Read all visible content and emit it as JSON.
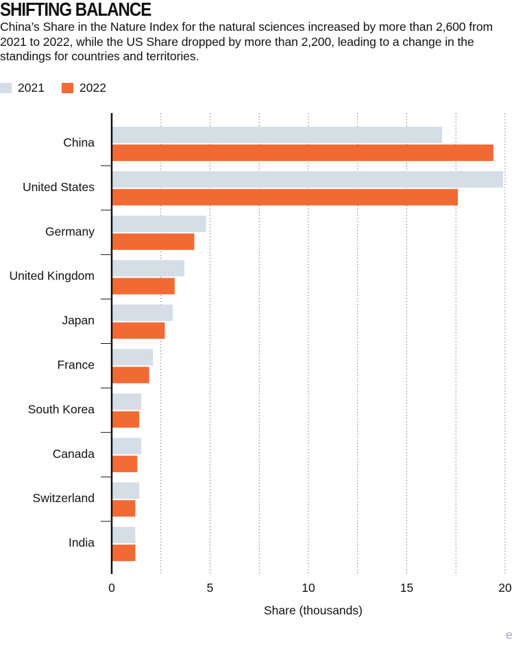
{
  "header": {
    "title": "SHIFTING BALANCE",
    "subtitle": "China’s Share in the Nature Index for the natural sciences increased by more than 2,600 from 2021 to 2022, while the US Share dropped by more than 2,200, leading to a change in the standings for countries and territories."
  },
  "colors": {
    "series_2021": "#d5dee6",
    "series_2022": "#f26a33",
    "axis": "#111111",
    "grid": "#777777"
  },
  "chart_data": {
    "type": "bar",
    "orientation": "horizontal",
    "title": "SHIFTING BALANCE",
    "xlabel": "Share (thousands)",
    "ylabel": "",
    "xlim": [
      0,
      20
    ],
    "xticks": [
      0,
      5,
      10,
      15,
      20
    ],
    "grid": "vertical dotted",
    "legend": "top-left",
    "categories": [
      "China",
      "United States",
      "Germany",
      "United Kingdom",
      "Japan",
      "France",
      "South Korea",
      "Canada",
      "Switzerland",
      "India"
    ],
    "series": [
      {
        "name": "2021",
        "values": [
          16.8,
          19.9,
          4.8,
          3.7,
          3.1,
          2.1,
          1.5,
          1.5,
          1.4,
          1.2
        ]
      },
      {
        "name": "2022",
        "values": [
          19.4,
          17.6,
          4.2,
          3.2,
          2.7,
          1.9,
          1.4,
          1.3,
          1.2,
          1.2
        ]
      }
    ]
  },
  "watermark": "e"
}
